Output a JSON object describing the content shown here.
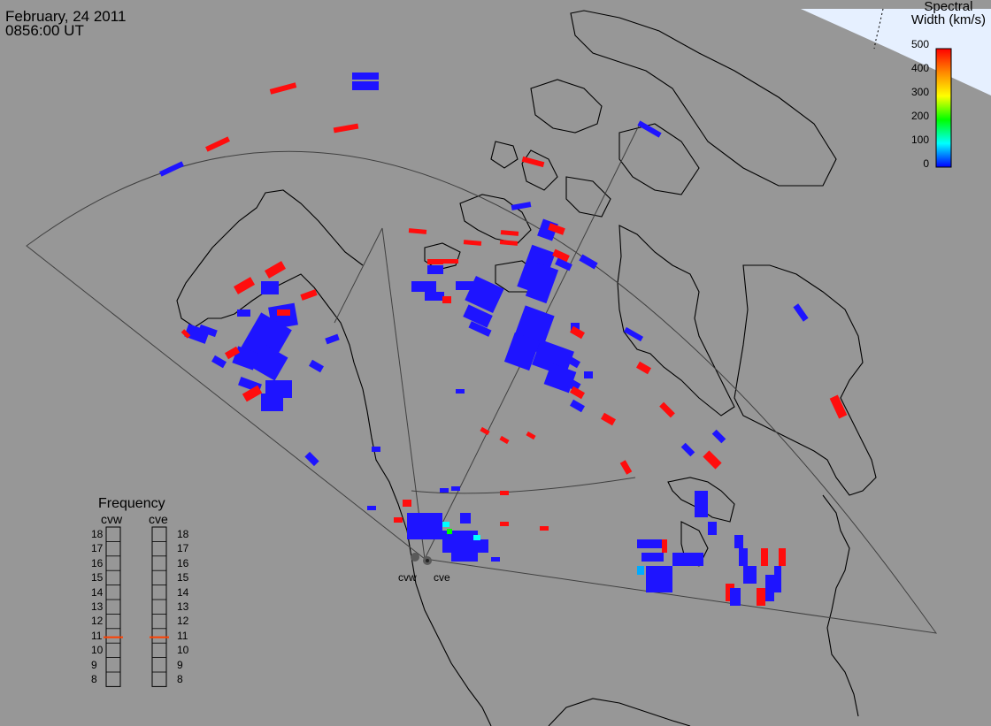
{
  "header": {
    "date": "February, 24 2011",
    "time": "0856:00 UT"
  },
  "colorbar": {
    "title_line1": "Spectral",
    "title_line2": "Width (km/s)",
    "ticks": [
      "500",
      "400",
      "300",
      "200",
      "100",
      "0"
    ],
    "colors": [
      "#ff0000",
      "#ff8800",
      "#ffff00",
      "#00ff00",
      "#00ffff",
      "#0000ff"
    ]
  },
  "frequency": {
    "title": "Frequency",
    "radars": [
      "cvw",
      "cve"
    ],
    "ticks": [
      "18",
      "17",
      "16",
      "15",
      "14",
      "13",
      "12",
      "11",
      "10",
      "9",
      "8"
    ],
    "marker_value": 10.9,
    "marker_color": "#ff4000"
  },
  "radars": {
    "west": "cvw",
    "east": "cve"
  },
  "map": {
    "background": "#979797",
    "daylight_color": "#e6f0ff",
    "echo_low_color": "#1e14ff",
    "echo_high_color": "#ff0d0d"
  }
}
